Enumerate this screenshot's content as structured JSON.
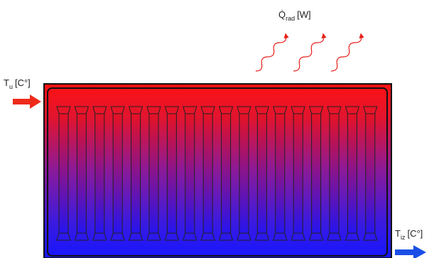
{
  "labels": {
    "heat": {
      "symbol": "Q̇",
      "subscript": "rad",
      "unit": "[W]"
    },
    "inlet": {
      "symbol": "T",
      "subscript": "u",
      "unit": "[C°]"
    },
    "outlet": {
      "symbol": "T",
      "subscript": "iz",
      "unit": "[C°]"
    }
  }
}
